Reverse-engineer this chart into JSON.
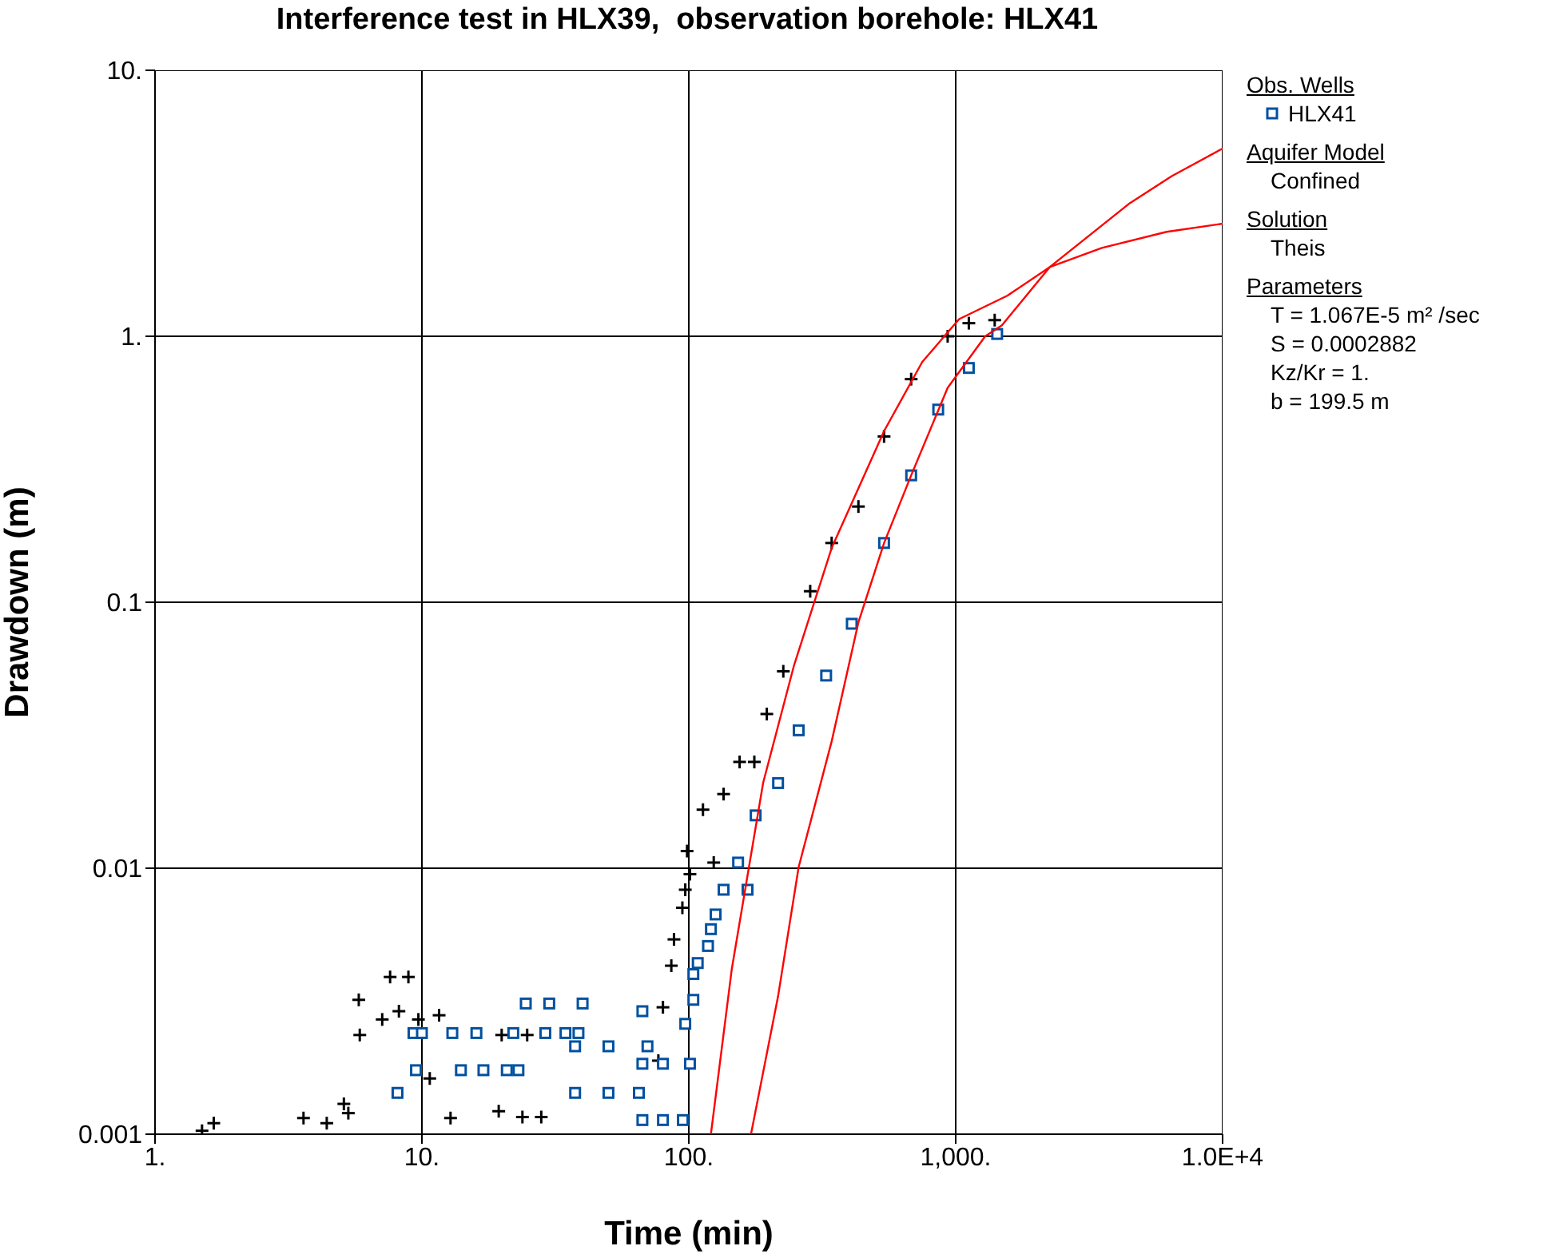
{
  "chart_data": {
    "type": "scatter",
    "title": "Interference test in HLX39,  observation borehole: HLX41",
    "xlabel": "Time (min)",
    "ylabel": "Drawdown (m)",
    "log": "xy",
    "grid": true,
    "legend": "right",
    "legend_title": "Obs. Wells",
    "xlim": [
      1,
      10000
    ],
    "xticks": [
      {
        "value": 1,
        "label": "1."
      },
      {
        "value": 10,
        "label": "10."
      },
      {
        "value": 100,
        "label": "100."
      },
      {
        "value": 1000,
        "label": "1,000."
      },
      {
        "value": 10000,
        "label": "1.0E+4"
      }
    ],
    "ylim": [
      0.001,
      10
    ],
    "yticks": [
      {
        "value": 0.001,
        "label": "0.001"
      },
      {
        "value": 0.01,
        "label": "0.01"
      },
      {
        "value": 0.1,
        "label": "0.1"
      },
      {
        "value": 1,
        "label": "1."
      },
      {
        "value": 10,
        "label": "10."
      }
    ],
    "series": [
      {
        "type": "scatter",
        "marker": "cross",
        "color": "#000000",
        "x": [
          1.5,
          1.66,
          3.6,
          4.4,
          5.1,
          5.3,
          5.85,
          5.8,
          7.1,
          7.6,
          8.9,
          8.2,
          9.7,
          11.6,
          10.7,
          12.8,
          19.9,
          24.8,
          19.4,
          23.8,
          28,
          76.9,
          80,
          86,
          88,
          94.6,
          97,
          98.5,
          101,
          113,
          124,
          135,
          155,
          176,
          196,
          226,
          285,
          343,
          432,
          539,
          681,
          933,
          1120,
          1400
        ],
        "values": [
          0.00103,
          0.0011,
          0.00115,
          0.0011,
          0.0013,
          0.0012,
          0.00236,
          0.0032,
          0.0027,
          0.0039,
          0.0039,
          0.0029,
          0.0027,
          0.0028,
          0.00162,
          0.00115,
          0.00236,
          0.00236,
          0.00122,
          0.00116,
          0.00116,
          0.00189,
          0.003,
          0.0043,
          0.0054,
          0.0071,
          0.0083,
          0.0116,
          0.0095,
          0.0166,
          0.0105,
          0.019,
          0.0251,
          0.0251,
          0.038,
          0.055,
          0.11,
          0.167,
          0.229,
          0.42,
          0.69,
          1.0,
          1.12,
          1.15
        ]
      },
      {
        "type": "scatter",
        "name": "HLX41",
        "marker": "square",
        "color": "#0050a0",
        "x": [
          8.1,
          9.5,
          9.3,
          10,
          13,
          16,
          22,
          29,
          34.5,
          38.6,
          14,
          17,
          20.8,
          23,
          24.5,
          30,
          40,
          37.5,
          50,
          70,
          37.5,
          50,
          65,
          67,
          67,
          80,
          101,
          67,
          80,
          95,
          97,
          104,
          104,
          108,
          118,
          121,
          126,
          135,
          153,
          166,
          178,
          216,
          258,
          327,
          408,
          539,
          681,
          860,
          1120,
          1430
        ],
        "values": [
          0.00143,
          0.00174,
          0.0024,
          0.0024,
          0.0024,
          0.0024,
          0.0024,
          0.0024,
          0.0024,
          0.0024,
          0.00174,
          0.00174,
          0.00174,
          0.00174,
          0.0031,
          0.0031,
          0.0031,
          0.00214,
          0.00214,
          0.00214,
          0.00143,
          0.00143,
          0.00143,
          0.0029,
          0.00184,
          0.00184,
          0.00184,
          0.00113,
          0.00113,
          0.00113,
          0.0026,
          0.0032,
          0.004,
          0.0044,
          0.0051,
          0.0059,
          0.0067,
          0.0083,
          0.0105,
          0.0083,
          0.0158,
          0.0209,
          0.033,
          0.053,
          0.083,
          0.167,
          0.3,
          0.53,
          0.76,
          1.02
        ]
      },
      {
        "type": "line",
        "marker": "none",
        "color": "#ff0000",
        "x": [
          121,
          145,
          190,
          248,
          343,
          539,
          749,
          1030,
          1560,
          2250,
          3530,
          6170,
          10000
        ],
        "values": [
          0.001,
          0.0042,
          0.021,
          0.058,
          0.16,
          0.44,
          0.8,
          1.16,
          1.42,
          1.82,
          2.15,
          2.47,
          2.65
        ]
      },
      {
        "type": "line",
        "marker": "none",
        "color": "#ff0000",
        "x": [
          171,
          216,
          258,
          343,
          432,
          539,
          681,
          933,
          1290,
          1490,
          2250,
          4500,
          6450,
          10000
        ],
        "values": [
          0.001,
          0.0033,
          0.0101,
          0.03,
          0.084,
          0.167,
          0.3,
          0.64,
          1.0,
          1.1,
          1.82,
          3.17,
          4.0,
          5.08
        ]
      }
    ],
    "annotations": [
      "Aquifer Model",
      "Confined",
      "Solution",
      "Theis",
      "Parameters",
      "T = 1.067E-5 m² /sec",
      "S = 0.0002882",
      "Kz/Kr = 1.",
      "b = 199.5 m"
    ]
  }
}
